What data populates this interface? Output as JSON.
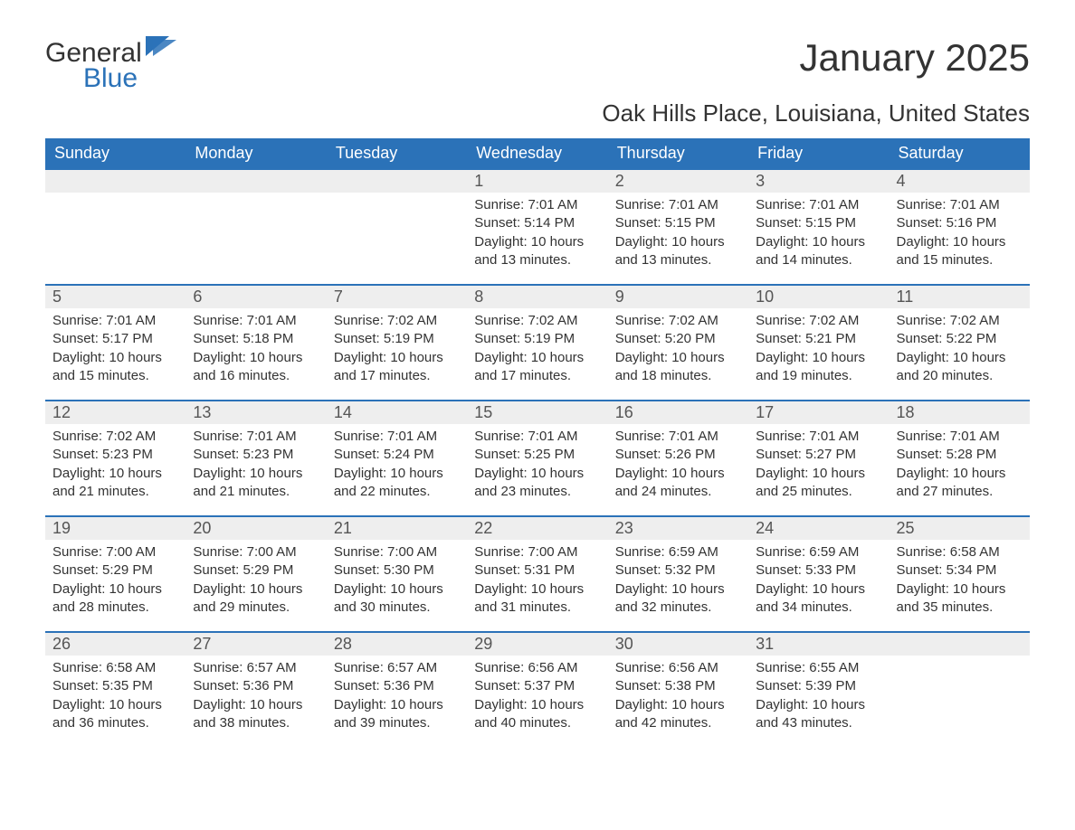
{
  "logo": {
    "general": "General",
    "blue": "Blue",
    "accent_color": "#2b72b8"
  },
  "title": "January 2025",
  "location": "Oak Hills Place, Louisiana, United States",
  "colors": {
    "header_bg": "#2b72b8",
    "header_text": "#ffffff",
    "daynum_bg": "#eeeeee",
    "border": "#2b72b8",
    "body_text": "#333333"
  },
  "day_headers": [
    "Sunday",
    "Monday",
    "Tuesday",
    "Wednesday",
    "Thursday",
    "Friday",
    "Saturday"
  ],
  "weeks": [
    [
      null,
      null,
      null,
      {
        "n": "1",
        "sr": "Sunrise: 7:01 AM",
        "ss": "Sunset: 5:14 PM",
        "d1": "Daylight: 10 hours",
        "d2": "and 13 minutes."
      },
      {
        "n": "2",
        "sr": "Sunrise: 7:01 AM",
        "ss": "Sunset: 5:15 PM",
        "d1": "Daylight: 10 hours",
        "d2": "and 13 minutes."
      },
      {
        "n": "3",
        "sr": "Sunrise: 7:01 AM",
        "ss": "Sunset: 5:15 PM",
        "d1": "Daylight: 10 hours",
        "d2": "and 14 minutes."
      },
      {
        "n": "4",
        "sr": "Sunrise: 7:01 AM",
        "ss": "Sunset: 5:16 PM",
        "d1": "Daylight: 10 hours",
        "d2": "and 15 minutes."
      }
    ],
    [
      {
        "n": "5",
        "sr": "Sunrise: 7:01 AM",
        "ss": "Sunset: 5:17 PM",
        "d1": "Daylight: 10 hours",
        "d2": "and 15 minutes."
      },
      {
        "n": "6",
        "sr": "Sunrise: 7:01 AM",
        "ss": "Sunset: 5:18 PM",
        "d1": "Daylight: 10 hours",
        "d2": "and 16 minutes."
      },
      {
        "n": "7",
        "sr": "Sunrise: 7:02 AM",
        "ss": "Sunset: 5:19 PM",
        "d1": "Daylight: 10 hours",
        "d2": "and 17 minutes."
      },
      {
        "n": "8",
        "sr": "Sunrise: 7:02 AM",
        "ss": "Sunset: 5:19 PM",
        "d1": "Daylight: 10 hours",
        "d2": "and 17 minutes."
      },
      {
        "n": "9",
        "sr": "Sunrise: 7:02 AM",
        "ss": "Sunset: 5:20 PM",
        "d1": "Daylight: 10 hours",
        "d2": "and 18 minutes."
      },
      {
        "n": "10",
        "sr": "Sunrise: 7:02 AM",
        "ss": "Sunset: 5:21 PM",
        "d1": "Daylight: 10 hours",
        "d2": "and 19 minutes."
      },
      {
        "n": "11",
        "sr": "Sunrise: 7:02 AM",
        "ss": "Sunset: 5:22 PM",
        "d1": "Daylight: 10 hours",
        "d2": "and 20 minutes."
      }
    ],
    [
      {
        "n": "12",
        "sr": "Sunrise: 7:02 AM",
        "ss": "Sunset: 5:23 PM",
        "d1": "Daylight: 10 hours",
        "d2": "and 21 minutes."
      },
      {
        "n": "13",
        "sr": "Sunrise: 7:01 AM",
        "ss": "Sunset: 5:23 PM",
        "d1": "Daylight: 10 hours",
        "d2": "and 21 minutes."
      },
      {
        "n": "14",
        "sr": "Sunrise: 7:01 AM",
        "ss": "Sunset: 5:24 PM",
        "d1": "Daylight: 10 hours",
        "d2": "and 22 minutes."
      },
      {
        "n": "15",
        "sr": "Sunrise: 7:01 AM",
        "ss": "Sunset: 5:25 PM",
        "d1": "Daylight: 10 hours",
        "d2": "and 23 minutes."
      },
      {
        "n": "16",
        "sr": "Sunrise: 7:01 AM",
        "ss": "Sunset: 5:26 PM",
        "d1": "Daylight: 10 hours",
        "d2": "and 24 minutes."
      },
      {
        "n": "17",
        "sr": "Sunrise: 7:01 AM",
        "ss": "Sunset: 5:27 PM",
        "d1": "Daylight: 10 hours",
        "d2": "and 25 minutes."
      },
      {
        "n": "18",
        "sr": "Sunrise: 7:01 AM",
        "ss": "Sunset: 5:28 PM",
        "d1": "Daylight: 10 hours",
        "d2": "and 27 minutes."
      }
    ],
    [
      {
        "n": "19",
        "sr": "Sunrise: 7:00 AM",
        "ss": "Sunset: 5:29 PM",
        "d1": "Daylight: 10 hours",
        "d2": "and 28 minutes."
      },
      {
        "n": "20",
        "sr": "Sunrise: 7:00 AM",
        "ss": "Sunset: 5:29 PM",
        "d1": "Daylight: 10 hours",
        "d2": "and 29 minutes."
      },
      {
        "n": "21",
        "sr": "Sunrise: 7:00 AM",
        "ss": "Sunset: 5:30 PM",
        "d1": "Daylight: 10 hours",
        "d2": "and 30 minutes."
      },
      {
        "n": "22",
        "sr": "Sunrise: 7:00 AM",
        "ss": "Sunset: 5:31 PM",
        "d1": "Daylight: 10 hours",
        "d2": "and 31 minutes."
      },
      {
        "n": "23",
        "sr": "Sunrise: 6:59 AM",
        "ss": "Sunset: 5:32 PM",
        "d1": "Daylight: 10 hours",
        "d2": "and 32 minutes."
      },
      {
        "n": "24",
        "sr": "Sunrise: 6:59 AM",
        "ss": "Sunset: 5:33 PM",
        "d1": "Daylight: 10 hours",
        "d2": "and 34 minutes."
      },
      {
        "n": "25",
        "sr": "Sunrise: 6:58 AM",
        "ss": "Sunset: 5:34 PM",
        "d1": "Daylight: 10 hours",
        "d2": "and 35 minutes."
      }
    ],
    [
      {
        "n": "26",
        "sr": "Sunrise: 6:58 AM",
        "ss": "Sunset: 5:35 PM",
        "d1": "Daylight: 10 hours",
        "d2": "and 36 minutes."
      },
      {
        "n": "27",
        "sr": "Sunrise: 6:57 AM",
        "ss": "Sunset: 5:36 PM",
        "d1": "Daylight: 10 hours",
        "d2": "and 38 minutes."
      },
      {
        "n": "28",
        "sr": "Sunrise: 6:57 AM",
        "ss": "Sunset: 5:36 PM",
        "d1": "Daylight: 10 hours",
        "d2": "and 39 minutes."
      },
      {
        "n": "29",
        "sr": "Sunrise: 6:56 AM",
        "ss": "Sunset: 5:37 PM",
        "d1": "Daylight: 10 hours",
        "d2": "and 40 minutes."
      },
      {
        "n": "30",
        "sr": "Sunrise: 6:56 AM",
        "ss": "Sunset: 5:38 PM",
        "d1": "Daylight: 10 hours",
        "d2": "and 42 minutes."
      },
      {
        "n": "31",
        "sr": "Sunrise: 6:55 AM",
        "ss": "Sunset: 5:39 PM",
        "d1": "Daylight: 10 hours",
        "d2": "and 43 minutes."
      },
      null
    ]
  ]
}
